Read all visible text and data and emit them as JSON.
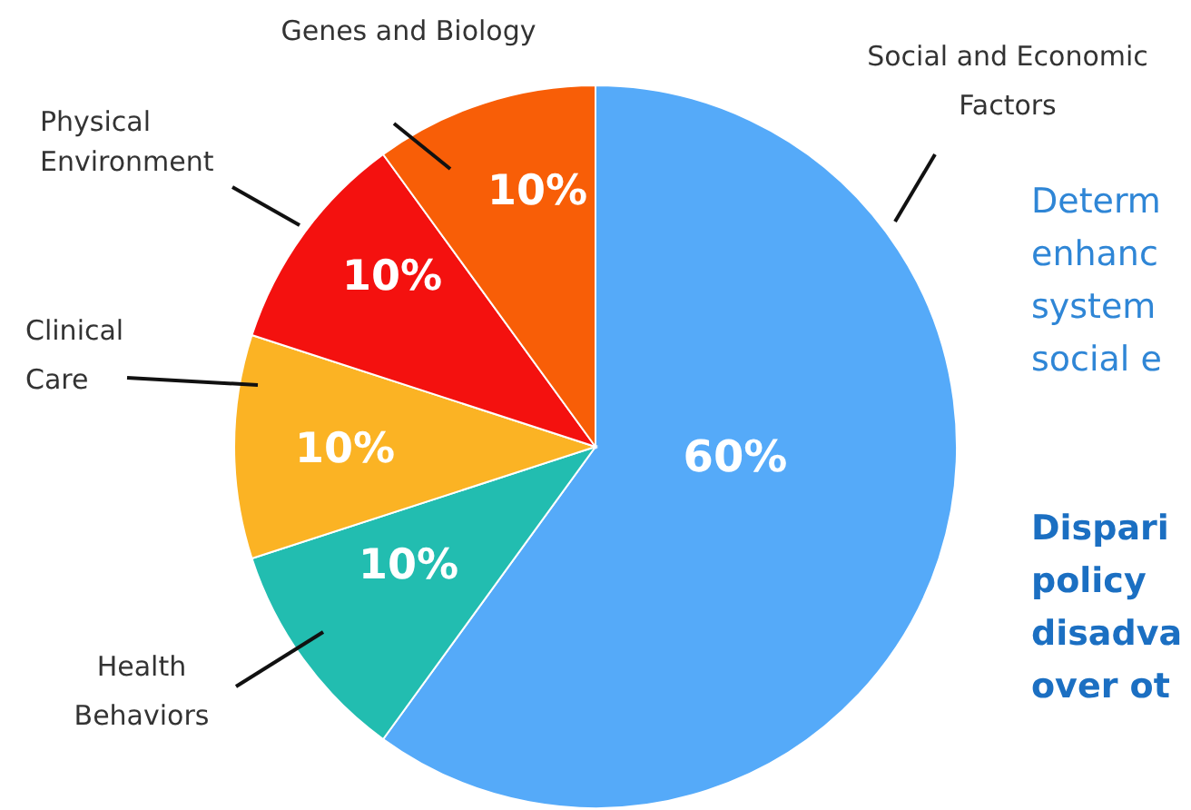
{
  "chart_data": {
    "type": "pie",
    "categories": [
      "Social and Economic\nFactors",
      "Health\nBehaviors",
      "Clinical\nCare",
      "Physical\nEnvironment",
      "Genes and Biology"
    ],
    "values": [
      60,
      10,
      10,
      10,
      10
    ],
    "colors": [
      "#55aaf9",
      "#22bdb0",
      "#fbb324",
      "#f4110f",
      "#f85e07"
    ],
    "value_labels": [
      "60%",
      "10%",
      "10%",
      "10%",
      "10%"
    ],
    "annotations": [
      "Determ\nenhanc\nsystem\nsocial e",
      "Dispari\npolicy\ndisadva\nover ot"
    ]
  }
}
